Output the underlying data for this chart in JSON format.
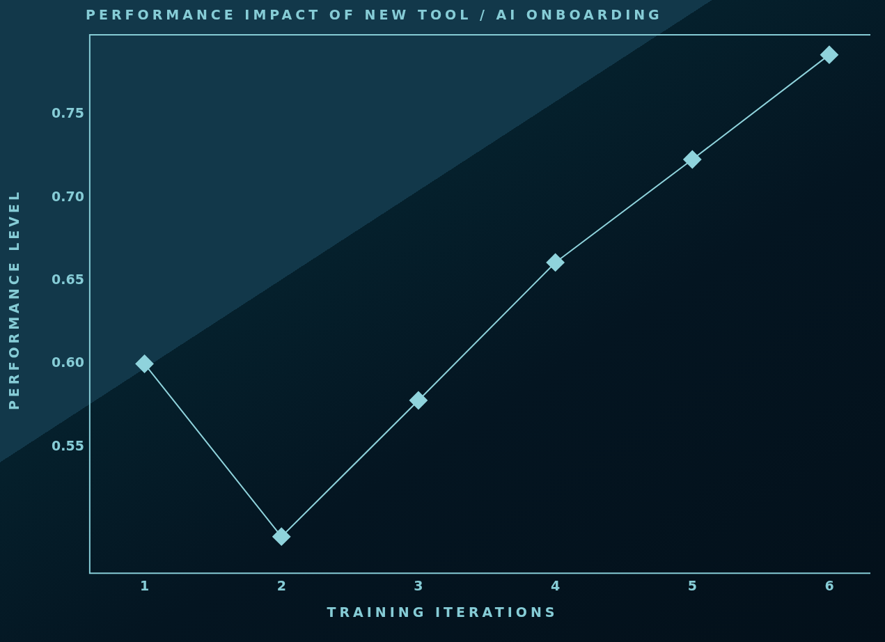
{
  "chart_data": {
    "type": "line",
    "title": "PERFORMANCE IMPACT OF NEW TOOL / AI ONBOARDING",
    "xlabel": "TRAINING ITERATIONS",
    "ylabel": "PERFORMANCE LEVEL",
    "x": [
      1,
      2,
      3,
      4,
      5,
      6
    ],
    "series": [
      {
        "color": "#8fd3dc",
        "values": [
          0.6,
          0.496,
          0.578,
          0.661,
          0.723,
          0.786
        ]
      }
    ],
    "xlim": [
      0.6,
      6.3
    ],
    "xticks": [
      1,
      2,
      3,
      4,
      5,
      6
    ],
    "ylim": [
      0.474,
      0.798
    ],
    "yticks": [
      0.55,
      {
        "value": 0.6,
        "label": "0.60"
      },
      0.65,
      {
        "value": 0.7,
        "label": "0.70"
      },
      0.75
    ],
    "grid": false,
    "legend": false,
    "marker": "diamond",
    "line_style": "solid"
  }
}
